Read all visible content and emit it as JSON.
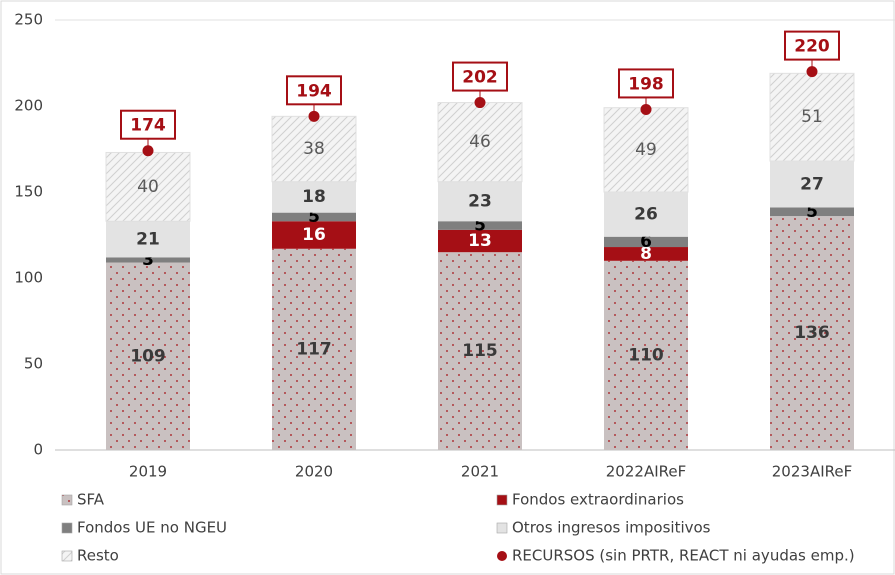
{
  "chart_data": {
    "type": "stacked_bar",
    "categories": [
      "2019",
      "2020",
      "2021",
      "2022AIReF",
      "2023AIReF"
    ],
    "ylim": [
      0,
      250
    ],
    "yticks": [
      0,
      50,
      100,
      150,
      200,
      250
    ],
    "series": [
      {
        "name": "SFA",
        "color": "#c9c1c1",
        "pattern": "dots",
        "values": [
          109,
          117,
          115,
          110,
          136
        ]
      },
      {
        "name": "Fondos extraordinarios",
        "color": "#a50f15",
        "values": [
          null,
          16,
          13,
          8,
          null
        ]
      },
      {
        "name": "Fondos UE no NGEU",
        "color": "#7f7f7f",
        "values": [
          3,
          5,
          5,
          6,
          5
        ]
      },
      {
        "name": "Otros ingresos impositivos",
        "color": "#e3e3e3",
        "values": [
          21,
          18,
          23,
          26,
          27
        ]
      },
      {
        "name": "Resto",
        "color": "#f4f4f4",
        "pattern": "hatch",
        "values": [
          40,
          38,
          46,
          49,
          51
        ]
      },
      {
        "name": "RECURSOS (sin PRTR, REACT ni ayudas emp.)",
        "color": "#a50f15",
        "type": "point",
        "values": [
          174,
          194,
          202,
          198,
          220
        ]
      }
    ],
    "grid": false
  }
}
